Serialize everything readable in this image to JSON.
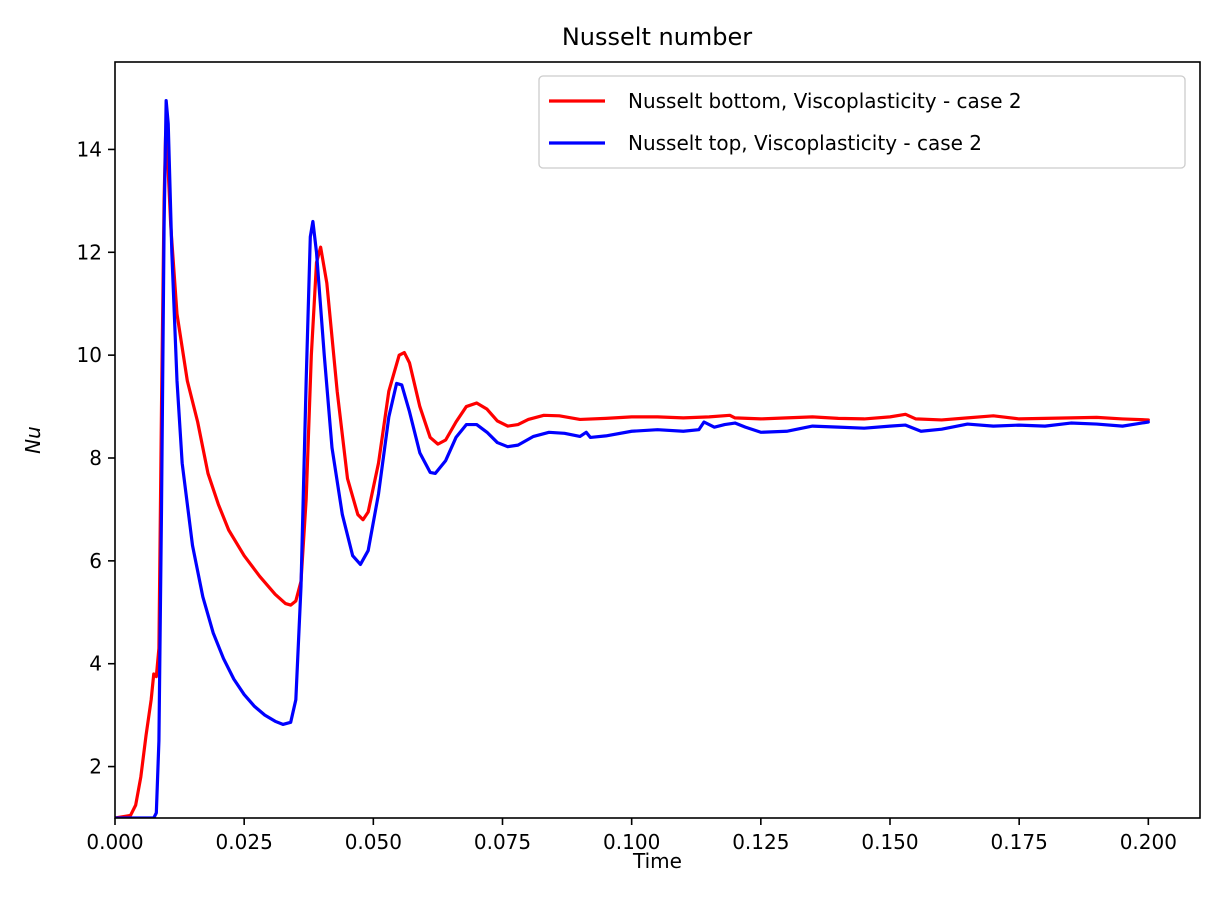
{
  "chart_data": {
    "type": "line",
    "title": "Nusselt number",
    "xlabel": "Time",
    "ylabel": "Nu",
    "xlim": [
      0.0,
      0.21
    ],
    "ylim": [
      1.0,
      15.7
    ],
    "x_ticks": [
      0.0,
      0.025,
      0.05,
      0.075,
      0.1,
      0.125,
      0.15,
      0.175,
      0.2
    ],
    "x_tick_labels": [
      "0.000",
      "0.025",
      "0.050",
      "0.075",
      "0.100",
      "0.125",
      "0.150",
      "0.175",
      "0.200"
    ],
    "y_ticks": [
      2,
      4,
      6,
      8,
      10,
      12,
      14
    ],
    "y_tick_labels": [
      "2",
      "4",
      "6",
      "8",
      "10",
      "12",
      "14"
    ],
    "grid": false,
    "legend_position": "top-right",
    "series": [
      {
        "name": "Nusselt bottom, Viscoplasticity - case 2",
        "color": "#ff0000",
        "points": [
          [
            0.0,
            1.0
          ],
          [
            0.003,
            1.05
          ],
          [
            0.004,
            1.25
          ],
          [
            0.005,
            1.8
          ],
          [
            0.006,
            2.6
          ],
          [
            0.007,
            3.3
          ],
          [
            0.0075,
            3.8
          ],
          [
            0.008,
            3.75
          ],
          [
            0.0085,
            4.3
          ],
          [
            0.009,
            9.0
          ],
          [
            0.0095,
            13.0
          ],
          [
            0.0098,
            14.3
          ],
          [
            0.0102,
            13.8
          ],
          [
            0.0108,
            12.5
          ],
          [
            0.012,
            10.8
          ],
          [
            0.014,
            9.5
          ],
          [
            0.016,
            8.7
          ],
          [
            0.018,
            7.7
          ],
          [
            0.02,
            7.1
          ],
          [
            0.022,
            6.6
          ],
          [
            0.025,
            6.1
          ],
          [
            0.028,
            5.7
          ],
          [
            0.031,
            5.35
          ],
          [
            0.033,
            5.17
          ],
          [
            0.034,
            5.14
          ],
          [
            0.035,
            5.22
          ],
          [
            0.036,
            5.6
          ],
          [
            0.037,
            7.2
          ],
          [
            0.038,
            10.0
          ],
          [
            0.039,
            11.8
          ],
          [
            0.0398,
            12.1
          ],
          [
            0.041,
            11.4
          ],
          [
            0.043,
            9.3
          ],
          [
            0.045,
            7.6
          ],
          [
            0.047,
            6.9
          ],
          [
            0.048,
            6.8
          ],
          [
            0.049,
            6.95
          ],
          [
            0.051,
            7.9
          ],
          [
            0.053,
            9.3
          ],
          [
            0.055,
            10.0
          ],
          [
            0.056,
            10.05
          ],
          [
            0.057,
            9.85
          ],
          [
            0.059,
            9.0
          ],
          [
            0.061,
            8.4
          ],
          [
            0.0625,
            8.27
          ],
          [
            0.064,
            8.35
          ],
          [
            0.066,
            8.7
          ],
          [
            0.068,
            9.0
          ],
          [
            0.07,
            9.07
          ],
          [
            0.072,
            8.95
          ],
          [
            0.074,
            8.72
          ],
          [
            0.076,
            8.62
          ],
          [
            0.078,
            8.65
          ],
          [
            0.08,
            8.75
          ],
          [
            0.083,
            8.83
          ],
          [
            0.086,
            8.82
          ],
          [
            0.09,
            8.75
          ],
          [
            0.095,
            8.77
          ],
          [
            0.1,
            8.8
          ],
          [
            0.105,
            8.8
          ],
          [
            0.11,
            8.78
          ],
          [
            0.115,
            8.8
          ],
          [
            0.119,
            8.83
          ],
          [
            0.12,
            8.78
          ],
          [
            0.125,
            8.76
          ],
          [
            0.13,
            8.78
          ],
          [
            0.135,
            8.8
          ],
          [
            0.14,
            8.77
          ],
          [
            0.145,
            8.76
          ],
          [
            0.15,
            8.8
          ],
          [
            0.153,
            8.85
          ],
          [
            0.155,
            8.76
          ],
          [
            0.16,
            8.74
          ],
          [
            0.165,
            8.78
          ],
          [
            0.17,
            8.82
          ],
          [
            0.175,
            8.76
          ],
          [
            0.18,
            8.77
          ],
          [
            0.185,
            8.78
          ],
          [
            0.19,
            8.79
          ],
          [
            0.195,
            8.76
          ],
          [
            0.2,
            8.74
          ]
        ]
      },
      {
        "name": "Nusselt top, Viscoplasticity - case 2",
        "color": "#0000ff",
        "points": [
          [
            0.0,
            1.0
          ],
          [
            0.0075,
            1.0
          ],
          [
            0.008,
            1.1
          ],
          [
            0.0085,
            2.5
          ],
          [
            0.009,
            7.0
          ],
          [
            0.0095,
            12.5
          ],
          [
            0.0099,
            14.95
          ],
          [
            0.0103,
            14.5
          ],
          [
            0.011,
            12.0
          ],
          [
            0.012,
            9.5
          ],
          [
            0.013,
            7.9
          ],
          [
            0.015,
            6.3
          ],
          [
            0.017,
            5.3
          ],
          [
            0.019,
            4.6
          ],
          [
            0.021,
            4.1
          ],
          [
            0.023,
            3.7
          ],
          [
            0.025,
            3.4
          ],
          [
            0.027,
            3.17
          ],
          [
            0.029,
            3.0
          ],
          [
            0.031,
            2.88
          ],
          [
            0.0325,
            2.82
          ],
          [
            0.034,
            2.86
          ],
          [
            0.035,
            3.3
          ],
          [
            0.036,
            5.5
          ],
          [
            0.037,
            9.5
          ],
          [
            0.0378,
            12.3
          ],
          [
            0.0383,
            12.6
          ],
          [
            0.039,
            12.0
          ],
          [
            0.0405,
            10.0
          ],
          [
            0.042,
            8.2
          ],
          [
            0.044,
            6.9
          ],
          [
            0.046,
            6.1
          ],
          [
            0.0475,
            5.93
          ],
          [
            0.049,
            6.2
          ],
          [
            0.051,
            7.3
          ],
          [
            0.053,
            8.8
          ],
          [
            0.0545,
            9.45
          ],
          [
            0.0555,
            9.42
          ],
          [
            0.057,
            8.9
          ],
          [
            0.059,
            8.1
          ],
          [
            0.061,
            7.72
          ],
          [
            0.062,
            7.7
          ],
          [
            0.064,
            7.95
          ],
          [
            0.066,
            8.4
          ],
          [
            0.068,
            8.65
          ],
          [
            0.07,
            8.65
          ],
          [
            0.072,
            8.5
          ],
          [
            0.074,
            8.3
          ],
          [
            0.076,
            8.22
          ],
          [
            0.078,
            8.25
          ],
          [
            0.081,
            8.42
          ],
          [
            0.084,
            8.5
          ],
          [
            0.087,
            8.48
          ],
          [
            0.09,
            8.42
          ],
          [
            0.0912,
            8.5
          ],
          [
            0.092,
            8.4
          ],
          [
            0.095,
            8.43
          ],
          [
            0.1,
            8.52
          ],
          [
            0.105,
            8.55
          ],
          [
            0.11,
            8.52
          ],
          [
            0.113,
            8.55
          ],
          [
            0.114,
            8.7
          ],
          [
            0.116,
            8.6
          ],
          [
            0.118,
            8.65
          ],
          [
            0.12,
            8.68
          ],
          [
            0.122,
            8.6
          ],
          [
            0.125,
            8.5
          ],
          [
            0.13,
            8.52
          ],
          [
            0.135,
            8.62
          ],
          [
            0.14,
            8.6
          ],
          [
            0.145,
            8.58
          ],
          [
            0.15,
            8.62
          ],
          [
            0.153,
            8.64
          ],
          [
            0.156,
            8.52
          ],
          [
            0.16,
            8.56
          ],
          [
            0.165,
            8.66
          ],
          [
            0.17,
            8.62
          ],
          [
            0.175,
            8.64
          ],
          [
            0.18,
            8.62
          ],
          [
            0.185,
            8.68
          ],
          [
            0.19,
            8.66
          ],
          [
            0.195,
            8.62
          ],
          [
            0.2,
            8.7
          ]
        ]
      }
    ]
  }
}
